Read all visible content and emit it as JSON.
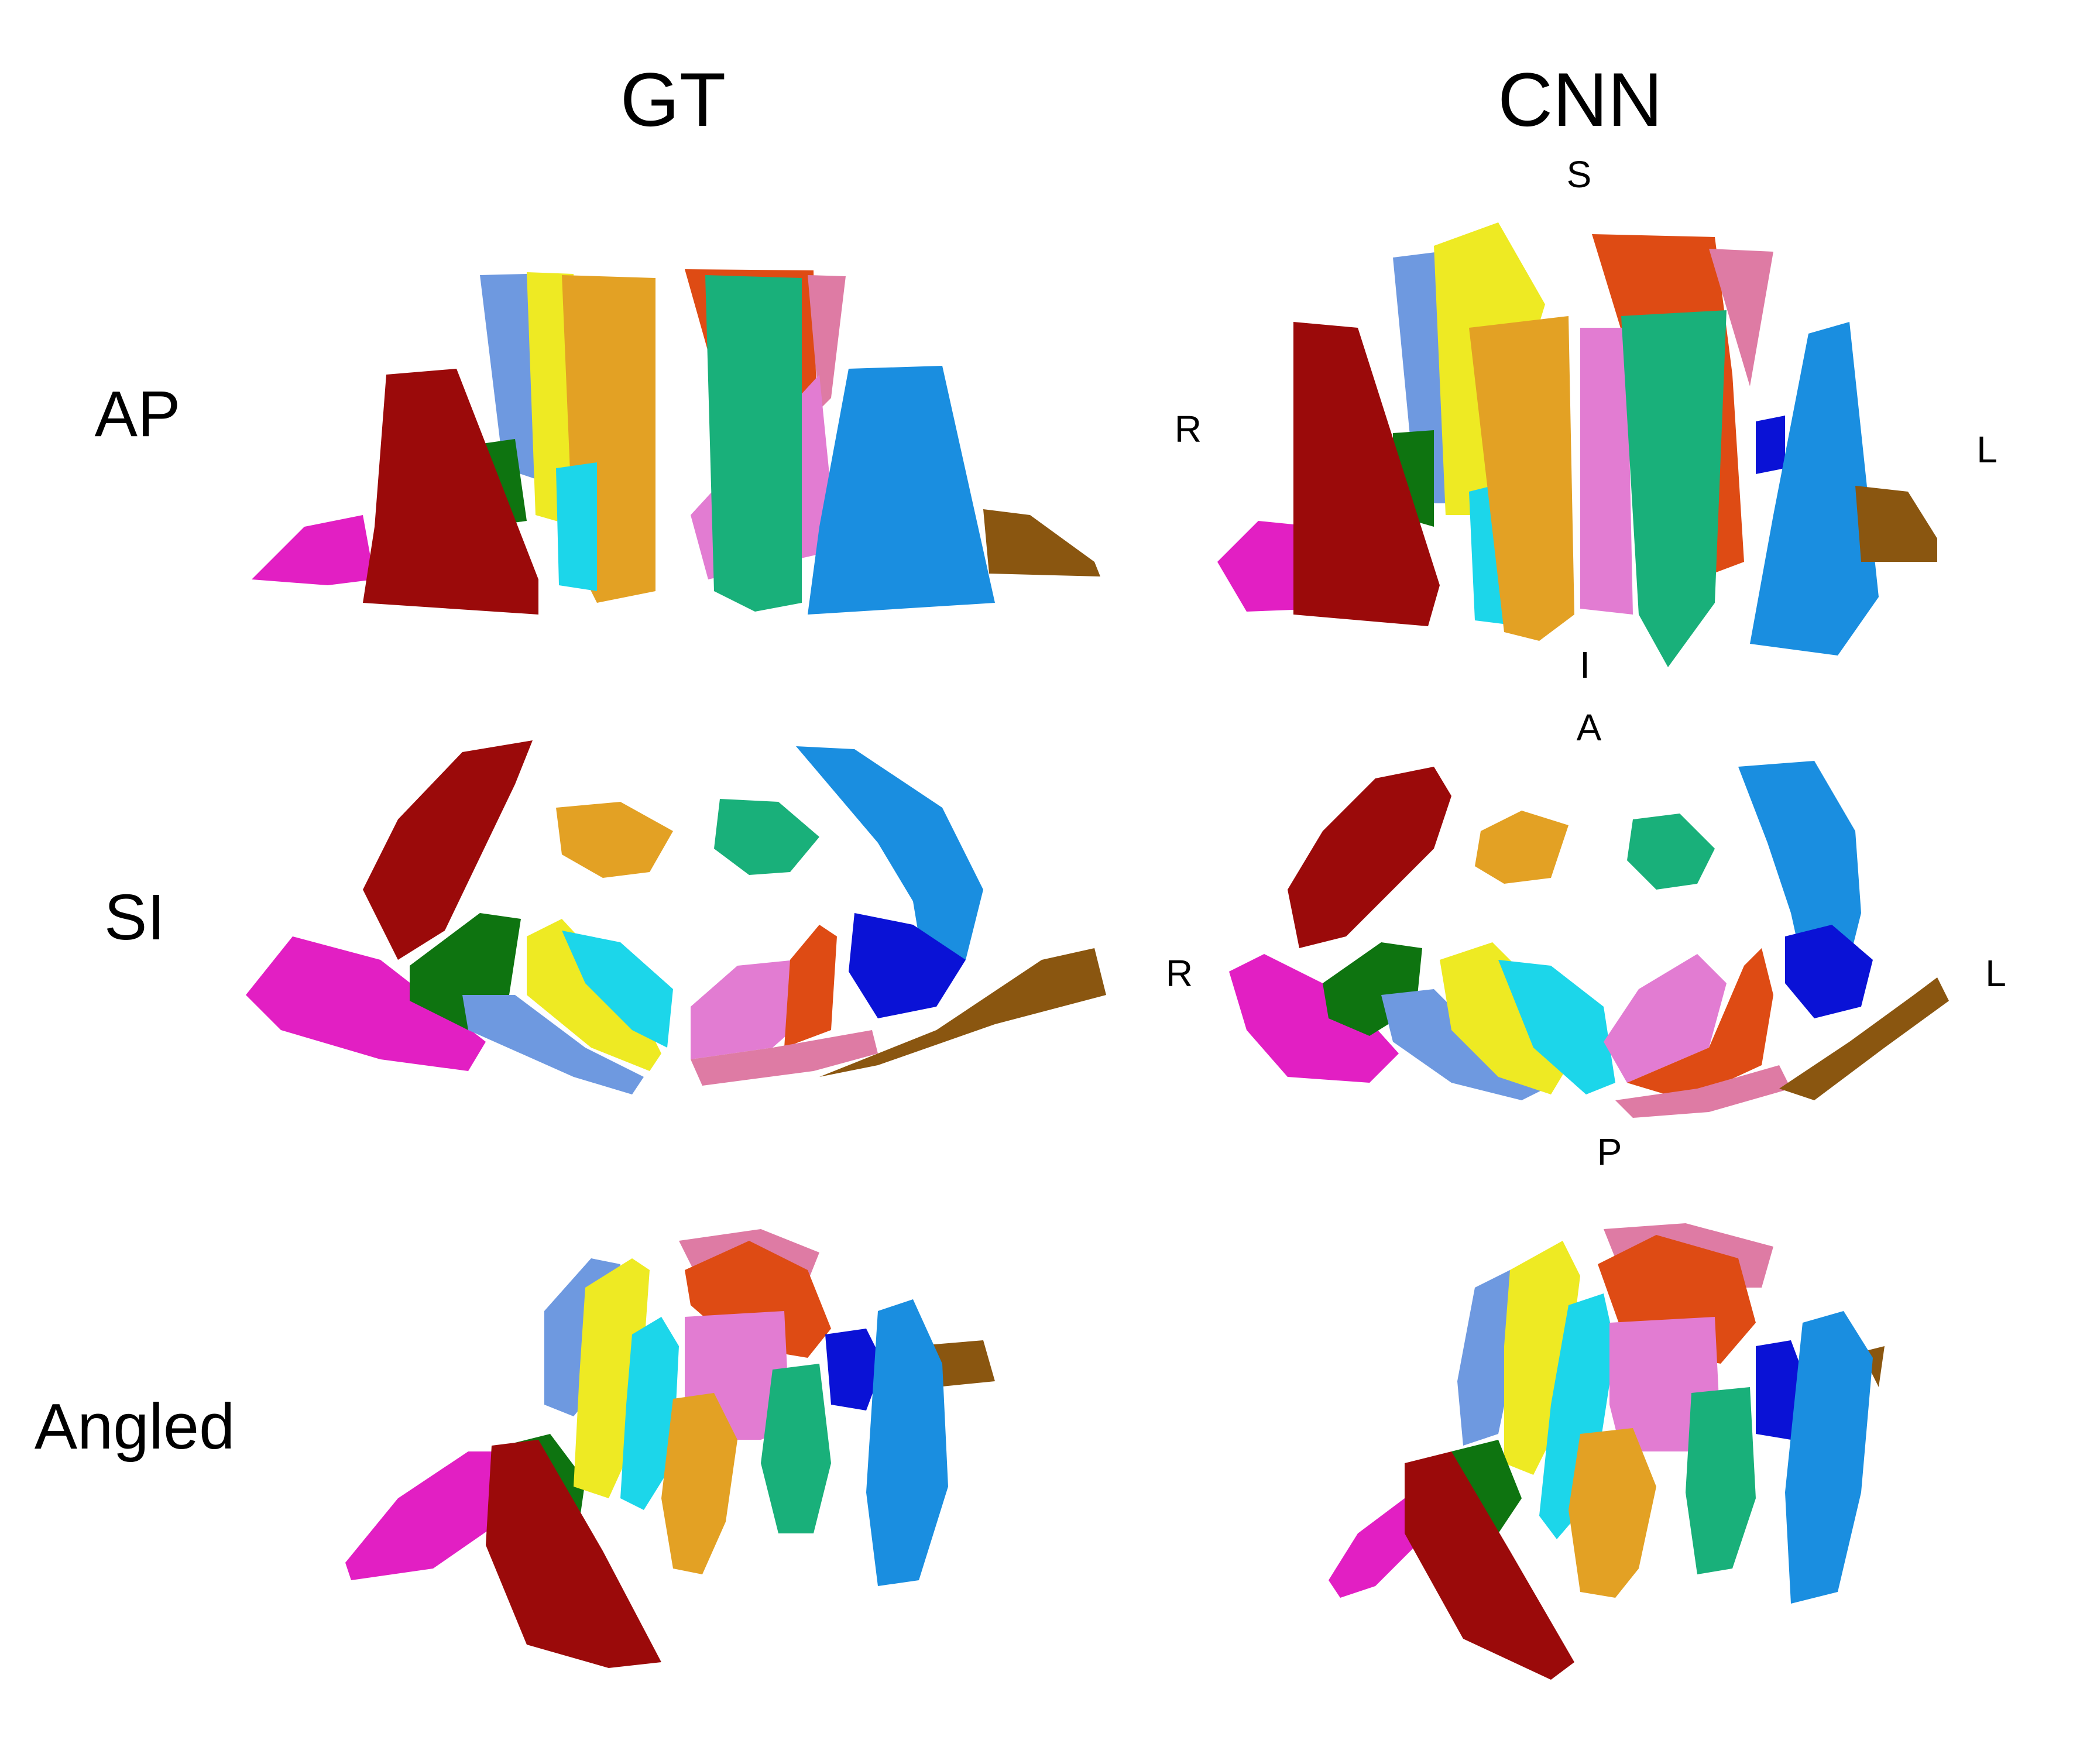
{
  "columns": [
    {
      "label": "GT"
    },
    {
      "label": "CNN"
    }
  ],
  "rows": [
    {
      "label": "AP"
    },
    {
      "label": "SI"
    },
    {
      "label": "Angled"
    }
  ],
  "orientation": {
    "ap": {
      "superior": "S",
      "inferior": "I",
      "right": "R",
      "left": "L"
    },
    "si": {
      "anterior": "A",
      "posterior": "P",
      "right": "R",
      "left": "L"
    }
  },
  "muscle_colors": {
    "dark_red": "#9B0A0A",
    "magenta": "#E21FC3",
    "dark_green": "#0E7410",
    "light_blue": "#6E99E0",
    "yellow": "#EEEA23",
    "cyan": "#1CD6EA",
    "orange": "#E3A124",
    "green": "#19B07A",
    "pink": "#E27CD2",
    "red_orange": "#DE4B14",
    "rose": "#DE7BA4",
    "blue": "#0A12D6",
    "sky_blue": "#1A8EE0",
    "brown": "#8A5610"
  }
}
